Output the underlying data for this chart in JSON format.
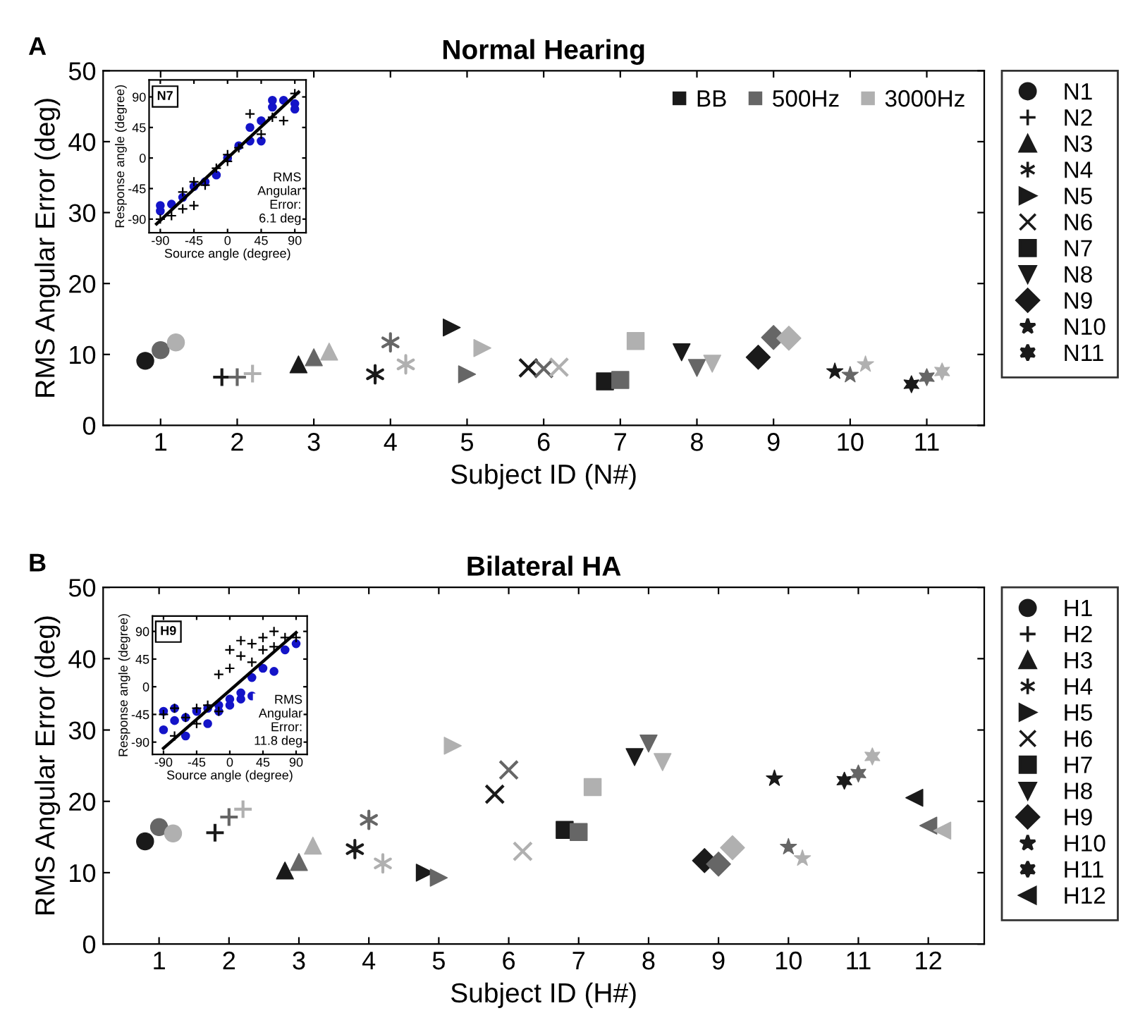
{
  "chart_data": [
    {
      "type": "scatter",
      "title": "Normal Hearing",
      "xlabel": "Subject ID (N#)",
      "ylabel": "RMS Angular Error (deg)",
      "xlim": [
        0.25,
        11.75
      ],
      "ylim": [
        0,
        50
      ],
      "xticks": [
        1,
        2,
        3,
        4,
        5,
        6,
        7,
        8,
        9,
        10,
        11
      ],
      "yticks": [
        0,
        10,
        20,
        30,
        40,
        50
      ],
      "legend": "right",
      "grid": false,
      "annotations": [
        "A",
        "BB",
        "500Hz",
        "3000Hz"
      ],
      "series": [
        {
          "name": "N1",
          "marker": "circle",
          "x": [
            0.8,
            1,
            1.2
          ],
          "values": [
            9.1,
            10.6,
            11.7
          ],
          "colors": [
            "#1a1a1a",
            "#666666",
            "#b0b0b0"
          ]
        },
        {
          "name": "N2",
          "marker": "plus",
          "x": [
            1.8,
            2,
            2.2
          ],
          "values": [
            6.8,
            6.8,
            7.3
          ],
          "colors": [
            "#1a1a1a",
            "#666666",
            "#b0b0b0"
          ]
        },
        {
          "name": "N3",
          "marker": "triangle",
          "x": [
            2.8,
            3,
            3.2
          ],
          "values": [
            8.6,
            9.6,
            10.4
          ],
          "colors": [
            "#1a1a1a",
            "#666666",
            "#b0b0b0"
          ]
        },
        {
          "name": "N4",
          "marker": "cross",
          "x": [
            3.8,
            4,
            4.2
          ],
          "values": [
            7.2,
            11.7,
            8.6
          ],
          "colors": [
            "#1a1a1a",
            "#666666",
            "#b0b0b0"
          ]
        },
        {
          "name": "N5",
          "marker": "triangle_right",
          "x": [
            4.8,
            5,
            5.2
          ],
          "values": [
            13.8,
            7.2,
            10.9
          ],
          "colors": [
            "#1a1a1a",
            "#666666",
            "#b0b0b0"
          ]
        },
        {
          "name": "N6",
          "marker": "x",
          "x": [
            5.8,
            6,
            6.2
          ],
          "values": [
            8.1,
            8.0,
            8.2
          ],
          "colors": [
            "#1a1a1a",
            "#666666",
            "#b0b0b0"
          ]
        },
        {
          "name": "N7",
          "marker": "square",
          "x": [
            6.8,
            7,
            7.2
          ],
          "values": [
            6.2,
            6.4,
            11.9
          ],
          "colors": [
            "#1a1a1a",
            "#666666",
            "#b0b0b0"
          ]
        },
        {
          "name": "N8",
          "marker": "triangle_down",
          "x": [
            7.8,
            8,
            8.2
          ],
          "values": [
            10.3,
            8.1,
            8.7
          ],
          "colors": [
            "#1a1a1a",
            "#666666",
            "#b0b0b0"
          ]
        },
        {
          "name": "N9",
          "marker": "diamond",
          "x": [
            8.8,
            9,
            9.2
          ],
          "values": [
            9.6,
            12.4,
            12.3
          ],
          "colors": [
            "#1a1a1a",
            "#666666",
            "#b0b0b0"
          ]
        },
        {
          "name": "N10",
          "marker": "star",
          "x": [
            9.8,
            10,
            10.2
          ],
          "values": [
            7.6,
            7.1,
            8.6
          ],
          "colors": [
            "#1a1a1a",
            "#666666",
            "#b0b0b0"
          ]
        },
        {
          "name": "N11",
          "x": [
            10.8,
            11,
            11.2
          ],
          "values": [
            5.8,
            6.8,
            7.6
          ],
          "colors": [
            "#1a1a1a",
            "#666666",
            "#b0b0b0"
          ]
        }
      ]
    },
    {
      "type": "scatter",
      "title": "N7",
      "xlabel": "Source angle (degree)",
      "ylabel": "Response angle (degree)",
      "xlim": [
        -105,
        105
      ],
      "ylim": [
        -110,
        115
      ],
      "xticks": [
        -90,
        -45,
        0,
        45,
        90
      ],
      "yticks": [
        -90,
        -45,
        0,
        45,
        90
      ],
      "legend": false,
      "grid": false,
      "annotations": [
        "RMS\nAngular\nError:\n6.1 deg"
      ],
      "series": [
        {
          "type": "scatter",
          "marker": "plus",
          "color": "#000000",
          "x": [
            -90,
            -75,
            -60,
            -60,
            -45,
            -45,
            -30,
            -15,
            0,
            0,
            15,
            30,
            45,
            60,
            75,
            90
          ],
          "values": [
            -90,
            -85,
            -50,
            -75,
            -35,
            -70,
            -40,
            -15,
            -5,
            5,
            15,
            65,
            35,
            60,
            55,
            95
          ]
        },
        {
          "type": "scatter",
          "marker": "circle",
          "color": "#1414c8",
          "x": [
            -90,
            -90,
            -75,
            -60,
            -45,
            -30,
            -15,
            0,
            15,
            30,
            30,
            45,
            45,
            60,
            60,
            75,
            90,
            90
          ],
          "values": [
            -70,
            -78,
            -68,
            -58,
            -42,
            -35,
            -25,
            0,
            18,
            25,
            45,
            25,
            55,
            75,
            85,
            85,
            80,
            72
          ]
        },
        {
          "type": "line",
          "color": "#000000",
          "x": [
            -95,
            95
          ],
          "values": [
            -97,
            97
          ]
        }
      ]
    },
    {
      "type": "scatter",
      "title": "Bilateral HA",
      "xlabel": "Subject ID (H#)",
      "ylabel": "RMS Angular Error (deg)",
      "xlim": [
        0.2,
        12.8
      ],
      "ylim": [
        0,
        50
      ],
      "xticks": [
        1,
        2,
        3,
        4,
        5,
        6,
        7,
        8,
        9,
        10,
        11,
        12
      ],
      "yticks": [
        0,
        10,
        20,
        30,
        40,
        50
      ],
      "legend": "right",
      "grid": false,
      "annotations": [
        "B"
      ],
      "series": [
        {
          "name": "H1",
          "marker": "circle",
          "x": [
            0.8,
            1,
            1.2
          ],
          "values": [
            14.4,
            16.4,
            15.5
          ],
          "colors": [
            "#1a1a1a",
            "#666666",
            "#b0b0b0"
          ]
        },
        {
          "name": "H2",
          "marker": "plus",
          "x": [
            1.8,
            2,
            2.2
          ],
          "values": [
            15.6,
            17.8,
            18.9
          ],
          "colors": [
            "#1a1a1a",
            "#666666",
            "#b0b0b0"
          ]
        },
        {
          "name": "H3",
          "marker": "triangle",
          "x": [
            2.8,
            3,
            3.2
          ],
          "values": [
            10.3,
            11.5,
            13.8
          ],
          "colors": [
            "#1a1a1a",
            "#666666",
            "#b0b0b0"
          ]
        },
        {
          "name": "H4",
          "marker": "cross",
          "x": [
            3.8,
            4,
            4.2
          ],
          "values": [
            13.3,
            17.4,
            11.3
          ],
          "colors": [
            "#1a1a1a",
            "#666666",
            "#b0b0b0"
          ]
        },
        {
          "name": "H5",
          "marker": "triangle_right",
          "x": [
            4.8,
            5,
            5.2
          ],
          "values": [
            10.0,
            9.3,
            27.8
          ],
          "colors": [
            "#1a1a1a",
            "#666666",
            "#b0b0b0"
          ]
        },
        {
          "name": "H6",
          "marker": "x",
          "x": [
            5.8,
            6,
            6.2
          ],
          "values": [
            21.0,
            24.4,
            13.0
          ],
          "colors": [
            "#1a1a1a",
            "#666666",
            "#b0b0b0"
          ]
        },
        {
          "name": "H7",
          "marker": "square",
          "x": [
            6.8,
            7,
            7.2
          ],
          "values": [
            16.0,
            15.7,
            22.0
          ],
          "colors": [
            "#1a1a1a",
            "#666666",
            "#b0b0b0"
          ]
        },
        {
          "name": "H8",
          "marker": "triangle_down",
          "x": [
            7.8,
            8,
            8.2
          ],
          "values": [
            26.2,
            28.1,
            25.5
          ],
          "colors": [
            "#1a1a1a",
            "#666666",
            "#b0b0b0"
          ]
        },
        {
          "name": "H9",
          "marker": "diamond",
          "x": [
            8.8,
            9,
            9.2
          ],
          "values": [
            11.7,
            11.2,
            13.5
          ],
          "colors": [
            "#1a1a1a",
            "#666666",
            "#b0b0b0"
          ]
        },
        {
          "name": "H10",
          "marker": "star",
          "x": [
            9.8,
            10,
            10.2
          ],
          "values": [
            23.2,
            13.6,
            12.0
          ],
          "colors": [
            "#1a1a1a",
            "#666666",
            "#b0b0b0"
          ]
        },
        {
          "name": "H11",
          "x": [
            10.8,
            11,
            11.2
          ],
          "values": [
            22.9,
            23.9,
            26.3
          ],
          "colors": [
            "#1a1a1a",
            "#666666",
            "#b0b0b0"
          ]
        },
        {
          "name": "H12",
          "marker": "triangle_left",
          "x": [
            11.8,
            12,
            12.2
          ],
          "values": [
            20.5,
            16.6,
            15.9
          ],
          "colors": [
            "#1a1a1a",
            "#666666",
            "#b0b0b0"
          ]
        }
      ]
    },
    {
      "type": "scatter",
      "title": "H9",
      "xlabel": "Source angle (degree)",
      "ylabel": "Response angle (degree)",
      "xlim": [
        -105,
        105
      ],
      "ylim": [
        -110,
        115
      ],
      "xticks": [
        -90,
        -45,
        0,
        45,
        90
      ],
      "yticks": [
        -90,
        -45,
        0,
        45,
        90
      ],
      "legend": false,
      "grid": false,
      "annotations": [
        "RMS\nAngular\nError:\n11.8 deg"
      ],
      "series": [
        {
          "type": "scatter",
          "marker": "plus",
          "color": "#000000",
          "x": [
            -90,
            -75,
            -75,
            -60,
            -45,
            -45,
            -30,
            -15,
            -15,
            0,
            0,
            15,
            15,
            30,
            30,
            45,
            45,
            60,
            60,
            75,
            90
          ],
          "values": [
            -45,
            -35,
            -80,
            -50,
            -35,
            -60,
            -30,
            -40,
            20,
            60,
            30,
            75,
            50,
            40,
            70,
            60,
            80,
            65,
            90,
            80,
            80
          ]
        },
        {
          "type": "scatter",
          "marker": "circle",
          "color": "#1414c8",
          "x": [
            -90,
            -90,
            -75,
            -75,
            -60,
            -60,
            -45,
            -30,
            -30,
            -15,
            -15,
            0,
            0,
            15,
            15,
            30,
            30,
            45,
            60,
            75,
            90
          ],
          "values": [
            -40,
            -70,
            -35,
            -55,
            -80,
            -50,
            -40,
            -35,
            -60,
            -30,
            -40,
            -20,
            -30,
            -10,
            -20,
            -15,
            15,
            30,
            25,
            60,
            70
          ]
        },
        {
          "type": "line",
          "color": "#000000",
          "x": [
            -90,
            90
          ],
          "values": [
            -100,
            88
          ]
        }
      ]
    }
  ]
}
